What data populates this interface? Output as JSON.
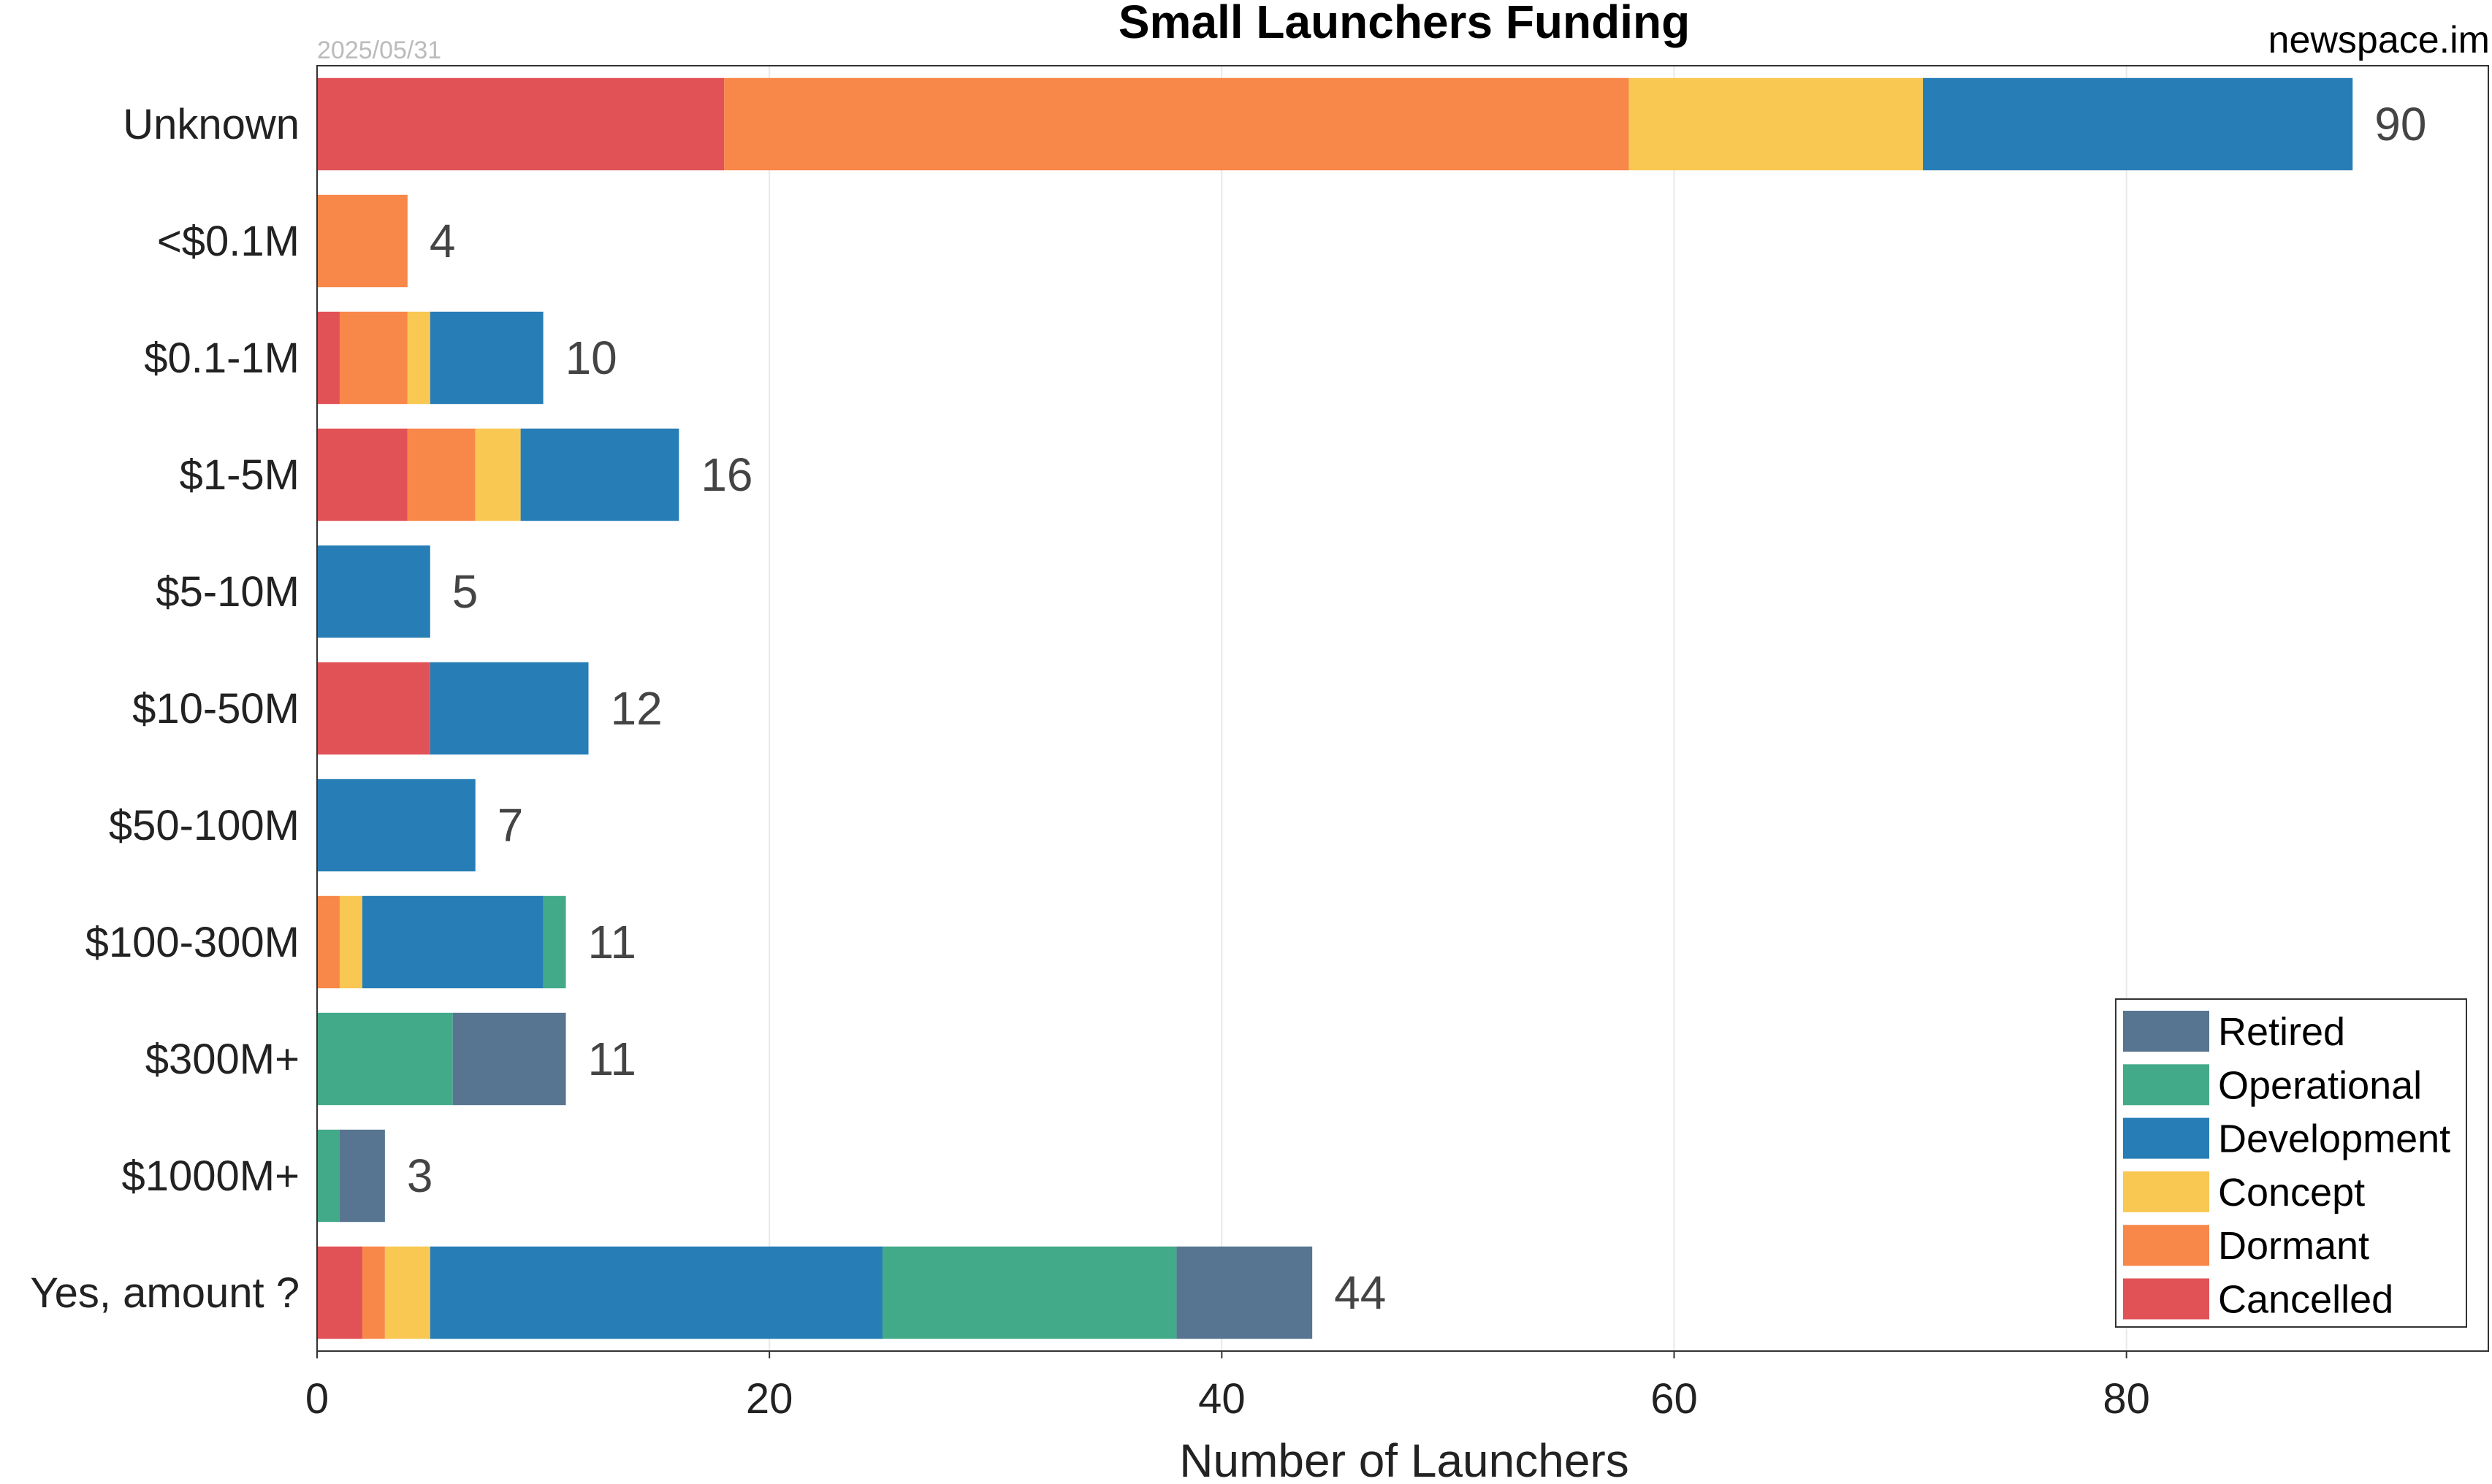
{
  "chart_data": {
    "type": "bar",
    "orientation": "horizontal",
    "stacked": true,
    "title": "Small Launchers Funding",
    "date": "2025/05/31",
    "source": "newspace.im",
    "xlabel": "Number of Launchers",
    "ylabel": "",
    "xlim": [
      0,
      96
    ],
    "xticks": [
      0,
      20,
      40,
      60,
      80
    ],
    "grid": "vertical",
    "legend_position": "bottom-right",
    "categories": [
      "Unknown",
      "<$0.1M",
      "$0.1-1M",
      "$1-5M",
      "$5-10M",
      "$10-50M",
      "$50-100M",
      "$100-300M",
      "$300M+",
      "$1000M+",
      "Yes, amount ?"
    ],
    "totals": [
      90,
      4,
      10,
      16,
      5,
      12,
      7,
      11,
      11,
      3,
      44
    ],
    "series": [
      {
        "name": "Cancelled",
        "color": "#e15256",
        "values": [
          18,
          0,
          1,
          4,
          0,
          5,
          0,
          0,
          0,
          0,
          2
        ]
      },
      {
        "name": "Dormant",
        "color": "#f8874a",
        "values": [
          40,
          4,
          3,
          3,
          0,
          0,
          0,
          1,
          0,
          0,
          1
        ]
      },
      {
        "name": "Concept",
        "color": "#f9c852",
        "values": [
          13,
          0,
          1,
          2,
          0,
          0,
          0,
          1,
          0,
          0,
          2
        ]
      },
      {
        "name": "Development",
        "color": "#277db6",
        "values": [
          19,
          0,
          5,
          7,
          5,
          7,
          7,
          8,
          0,
          0,
          20
        ]
      },
      {
        "name": "Operational",
        "color": "#43aa89",
        "values": [
          0,
          0,
          0,
          0,
          0,
          0,
          0,
          1,
          6,
          1,
          13
        ]
      },
      {
        "name": "Retired",
        "color": "#577590",
        "values": [
          0,
          0,
          0,
          0,
          0,
          0,
          0,
          0,
          5,
          2,
          6
        ]
      }
    ],
    "legend_order": [
      "Retired",
      "Operational",
      "Development",
      "Concept",
      "Dormant",
      "Cancelled"
    ]
  }
}
